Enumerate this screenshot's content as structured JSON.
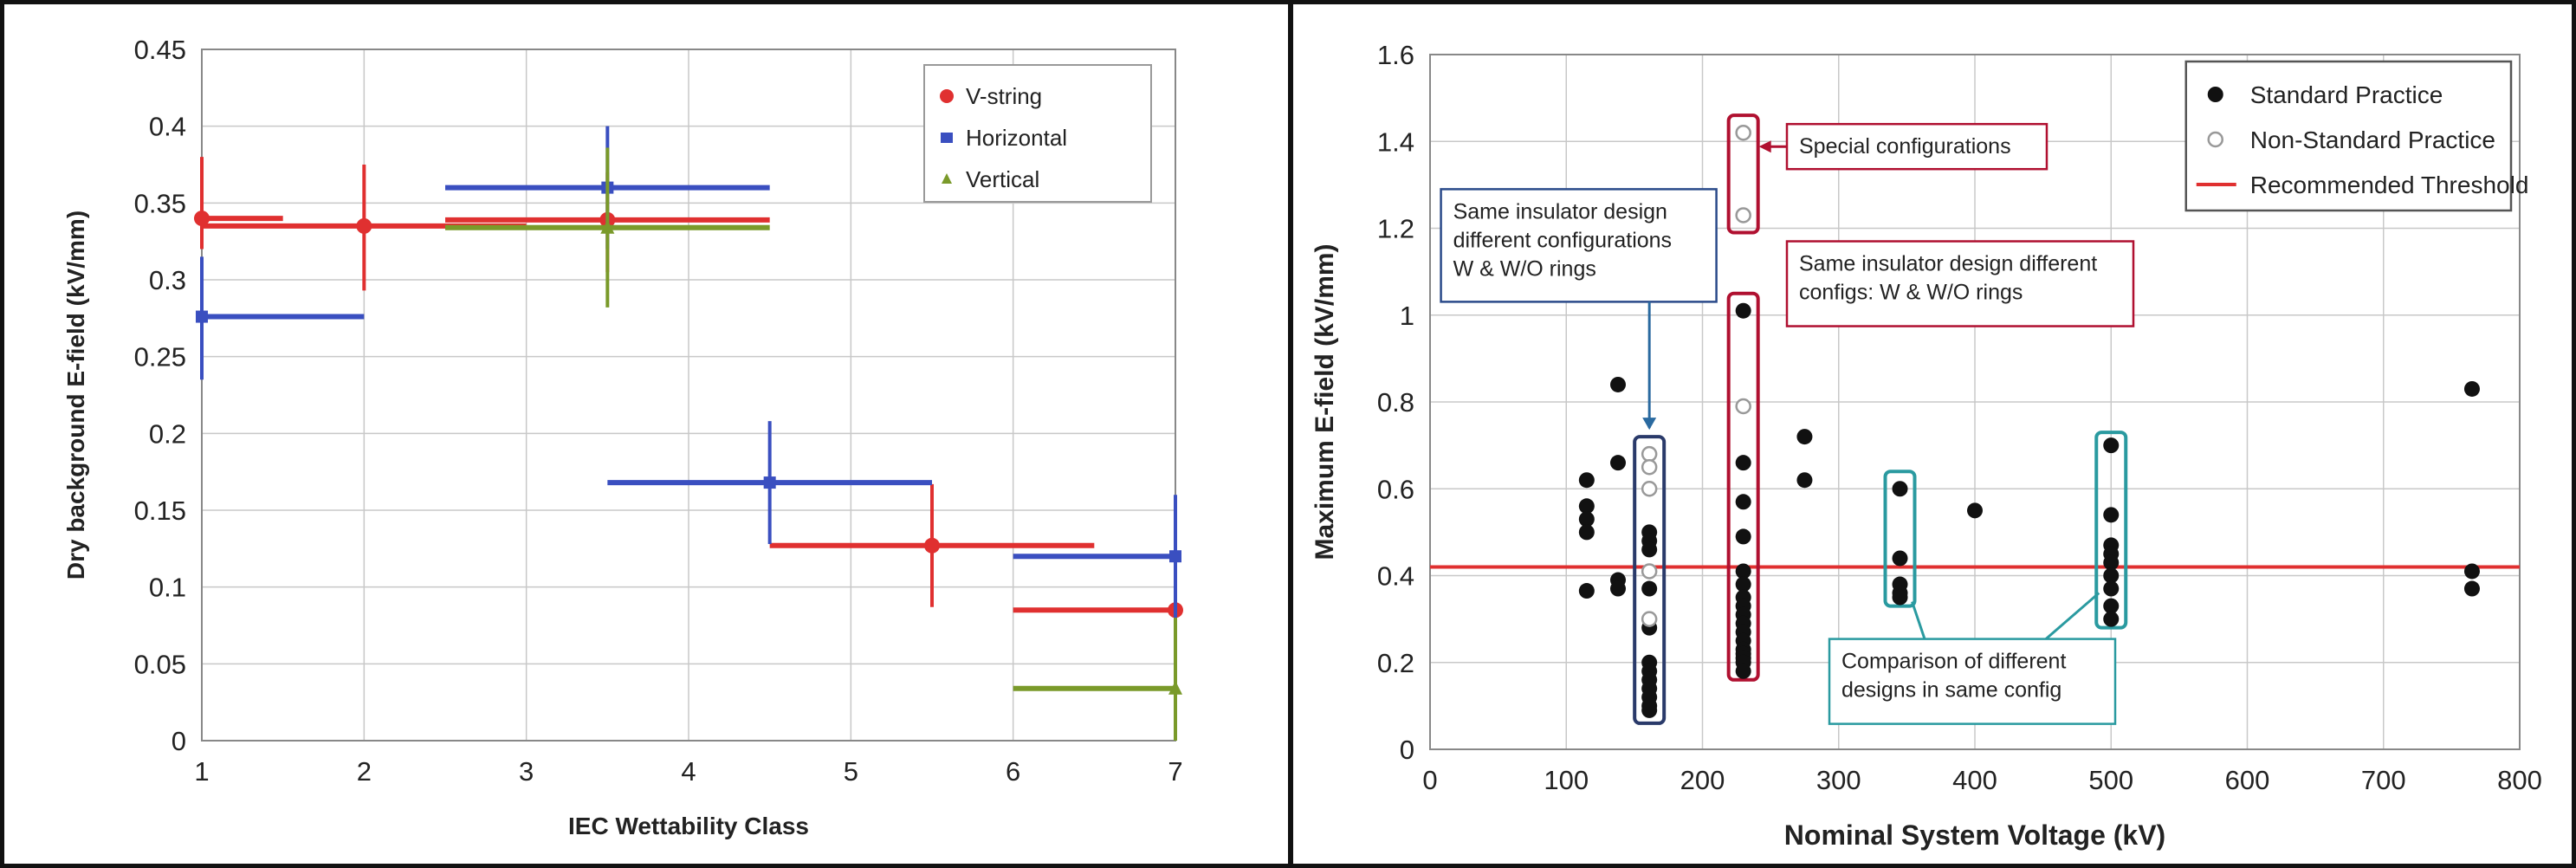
{
  "chart_data": [
    {
      "type": "scatter",
      "subtype": "error-bar-crosshair",
      "title": "",
      "xlabel": "IEC Wettability Class",
      "ylabel": "Dry background E-field (kV/mm)",
      "xlim": [
        1,
        7
      ],
      "ylim": [
        0,
        0.45
      ],
      "x_ticks": [
        "1",
        "2",
        "3",
        "4",
        "5",
        "6",
        "7"
      ],
      "y_ticks": [
        "0",
        "0.05",
        "0.1",
        "0.15",
        "0.2",
        "0.25",
        "0.3",
        "0.35",
        "0.4",
        "0.45"
      ],
      "grid": true,
      "legend_position": "top-right",
      "series": [
        {
          "name": "V-string",
          "color": "#e03030",
          "marker": "circle",
          "points": [
            {
              "x": 1,
              "y": 0.34,
              "xerr": [
                1,
                1.5
              ],
              "yerr": [
                0.32,
                0.38
              ]
            },
            {
              "x": 2,
              "y": 0.335,
              "xerr": [
                1,
                3
              ],
              "yerr": [
                0.293,
                0.375
              ]
            },
            {
              "x": 3.5,
              "y": 0.339,
              "xerr": [
                2.5,
                4.5
              ],
              "yerr": [
                0.305,
                0.37
              ]
            },
            {
              "x": 5.5,
              "y": 0.127,
              "xerr": [
                4.5,
                6.5
              ],
              "yerr": [
                0.087,
                0.167
              ]
            },
            {
              "x": 7,
              "y": 0.085,
              "xerr": [
                6,
                7
              ],
              "yerr": [
                0.07,
                0.1
              ]
            }
          ]
        },
        {
          "name": "Horizontal",
          "color": "#3a4fc0",
          "marker": "square",
          "points": [
            {
              "x": 1,
              "y": 0.276,
              "xerr": [
                1,
                2
              ],
              "yerr": [
                0.235,
                0.315
              ]
            },
            {
              "x": 3.5,
              "y": 0.36,
              "xerr": [
                2.5,
                4.5
              ],
              "yerr": [
                0.32,
                0.4
              ]
            },
            {
              "x": 4.5,
              "y": 0.168,
              "xerr": [
                3.5,
                5.5
              ],
              "yerr": [
                0.128,
                0.208
              ]
            },
            {
              "x": 7,
              "y": 0.12,
              "xerr": [
                6,
                7
              ],
              "yerr": [
                0.08,
                0.16
              ]
            }
          ]
        },
        {
          "name": "Vertical",
          "color": "#7a9a2a",
          "marker": "triangle",
          "points": [
            {
              "x": 3.5,
              "y": 0.334,
              "xerr": [
                2.5,
                4.5
              ],
              "yerr": [
                0.282,
                0.386
              ]
            },
            {
              "x": 7,
              "y": 0.034,
              "xerr": [
                6,
                7
              ],
              "yerr": [
                0,
                0.08
              ]
            }
          ]
        }
      ]
    },
    {
      "type": "scatter",
      "title": "",
      "xlabel": "Nominal System Voltage (kV)",
      "ylabel": "Maximum E-field (kV/mm)",
      "xlim": [
        0,
        800
      ],
      "ylim": [
        0,
        1.6
      ],
      "x_ticks": [
        "0",
        "100",
        "200",
        "300",
        "400",
        "500",
        "600",
        "700",
        "800"
      ],
      "y_ticks": [
        "0",
        "0.2",
        "0.4",
        "0.6",
        "0.8",
        "1",
        "1.2",
        "1.4",
        "1.6"
      ],
      "grid": true,
      "legend_position": "top-right",
      "threshold": {
        "name": "Recommended Threshold",
        "y": 0.42,
        "color": "#e03030"
      },
      "series": [
        {
          "name": "Standard Practice",
          "marker": "filled-circle",
          "x": [
            115,
            115,
            115,
            115,
            115,
            138,
            138,
            138,
            138,
            161,
            161,
            161,
            161,
            161,
            161,
            161,
            161,
            161,
            161,
            161,
            161,
            230,
            230,
            230,
            230,
            230,
            230,
            230,
            230,
            230,
            230,
            230,
            230,
            230,
            230,
            230,
            230,
            230,
            275,
            275,
            345,
            345,
            345,
            345,
            345,
            400,
            500,
            500,
            500,
            500,
            500,
            500,
            500,
            500,
            500,
            765,
            765,
            765
          ],
          "y": [
            0.62,
            0.56,
            0.53,
            0.5,
            0.365,
            0.84,
            0.66,
            0.39,
            0.37,
            0.5,
            0.48,
            0.46,
            0.37,
            0.28,
            0.2,
            0.18,
            0.16,
            0.14,
            0.12,
            0.1,
            0.09,
            1.01,
            0.66,
            0.57,
            0.49,
            0.41,
            0.38,
            0.35,
            0.33,
            0.31,
            0.29,
            0.27,
            0.25,
            0.23,
            0.22,
            0.21,
            0.2,
            0.18,
            0.72,
            0.62,
            0.6,
            0.44,
            0.38,
            0.36,
            0.35,
            0.55,
            0.7,
            0.54,
            0.47,
            0.45,
            0.43,
            0.4,
            0.37,
            0.33,
            0.3,
            0.83,
            0.41,
            0.37
          ]
        },
        {
          "name": "Non-Standard Practice",
          "marker": "open-circle",
          "x": [
            161,
            161,
            161,
            161,
            161,
            230,
            230,
            230
          ],
          "y": [
            0.68,
            0.65,
            0.6,
            0.41,
            0.3,
            1.42,
            1.23,
            0.79
          ]
        }
      ],
      "annotations": [
        {
          "text": "Special configurations",
          "color": "#b01030"
        },
        {
          "text": "Same insulator design different configs: W & W/O rings",
          "color": "#b01030"
        },
        {
          "text": "Same insulator design different configurations W & W/O rings",
          "color": "#2a4a8a"
        },
        {
          "text": "Comparison of different designs in same config",
          "color": "#2a9aa0"
        }
      ]
    }
  ]
}
